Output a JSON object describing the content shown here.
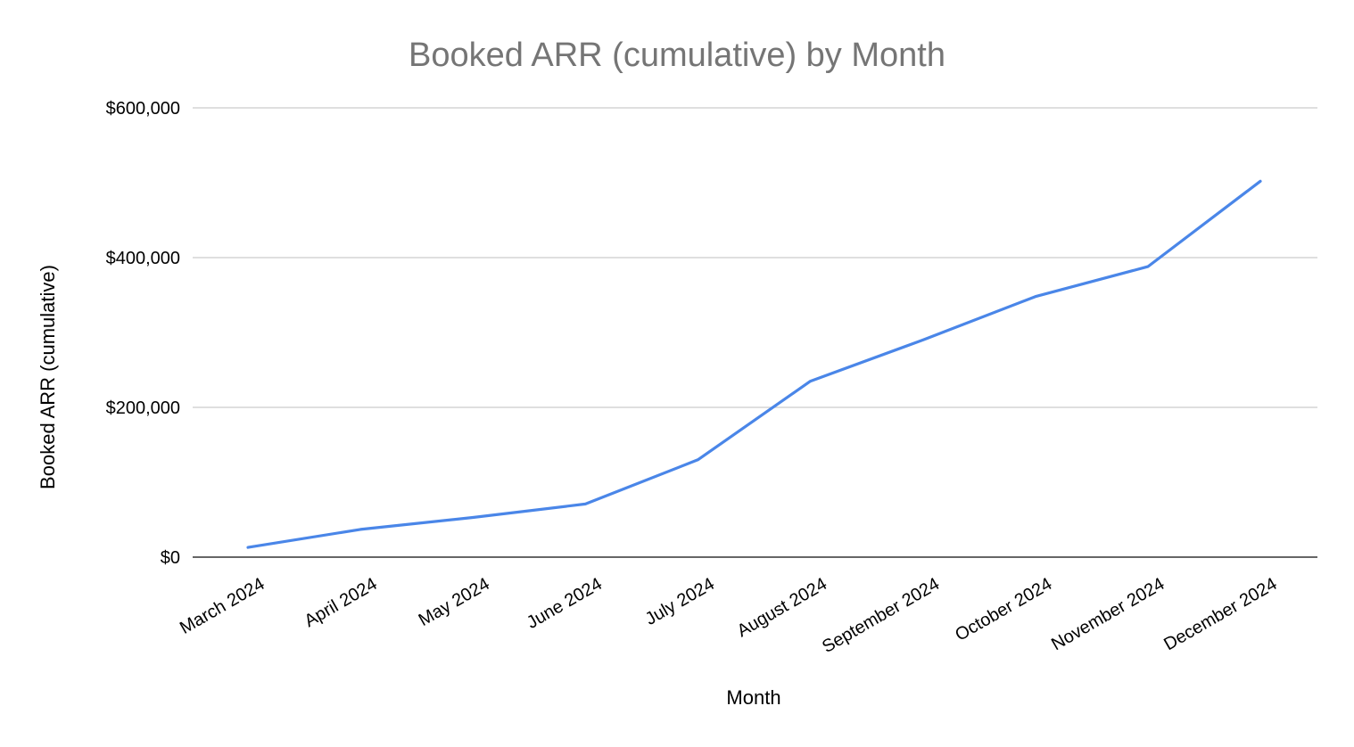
{
  "chart_data": {
    "type": "line",
    "title": "Booked ARR (cumulative) by Month",
    "xlabel": "Month",
    "ylabel": "Booked ARR (cumulative)",
    "categories": [
      "March 2024",
      "April 2024",
      "May 2024",
      "June 2024",
      "July 2024",
      "August 2024",
      "September 2024",
      "October 2024",
      "November 2024",
      "December 2024"
    ],
    "series": [
      {
        "values": [
          13000,
          37000,
          53000,
          71000,
          130000,
          235000,
          290000,
          348000,
          388000,
          502000
        ],
        "color": "#4a86e8"
      }
    ],
    "ylim": [
      0,
      600000
    ],
    "yticks": [
      0,
      200000,
      400000,
      600000
    ],
    "ytick_labels": [
      "$0",
      "$200,000",
      "$400,000",
      "$600,000"
    ],
    "grid": true,
    "legend": "none"
  }
}
